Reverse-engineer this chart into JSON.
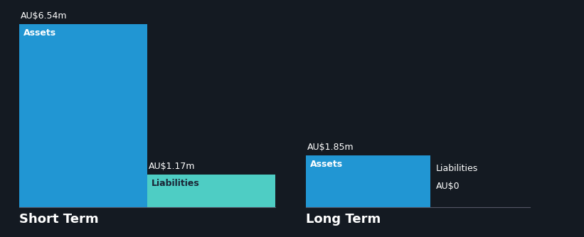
{
  "background_color": "#141a22",
  "short_term": {
    "assets_value": 6.54,
    "liabilities_value": 1.17,
    "assets_label": "Assets",
    "liabilities_label": "Liabilities",
    "assets_color": "#2196d3",
    "liabilities_color": "#4ecdc4",
    "section_label": "Short Term",
    "assets_annotation": "AU$6.54m",
    "liabilities_annotation": "AU$1.17m"
  },
  "long_term": {
    "assets_value": 1.85,
    "liabilities_value": 0.0,
    "assets_label": "Assets",
    "liabilities_label": "Liabilities",
    "assets_color": "#2196d3",
    "liabilities_color": "#4ecdc4",
    "section_label": "Long Term",
    "assets_annotation": "AU$1.85m",
    "liabilities_annotation": "AU$0"
  },
  "text_color": "#ffffff",
  "label_color_dark": "#1a2535",
  "section_label_fontsize": 13,
  "bar_label_fontsize": 9,
  "annotation_fontsize": 9,
  "max_value": 6.54
}
